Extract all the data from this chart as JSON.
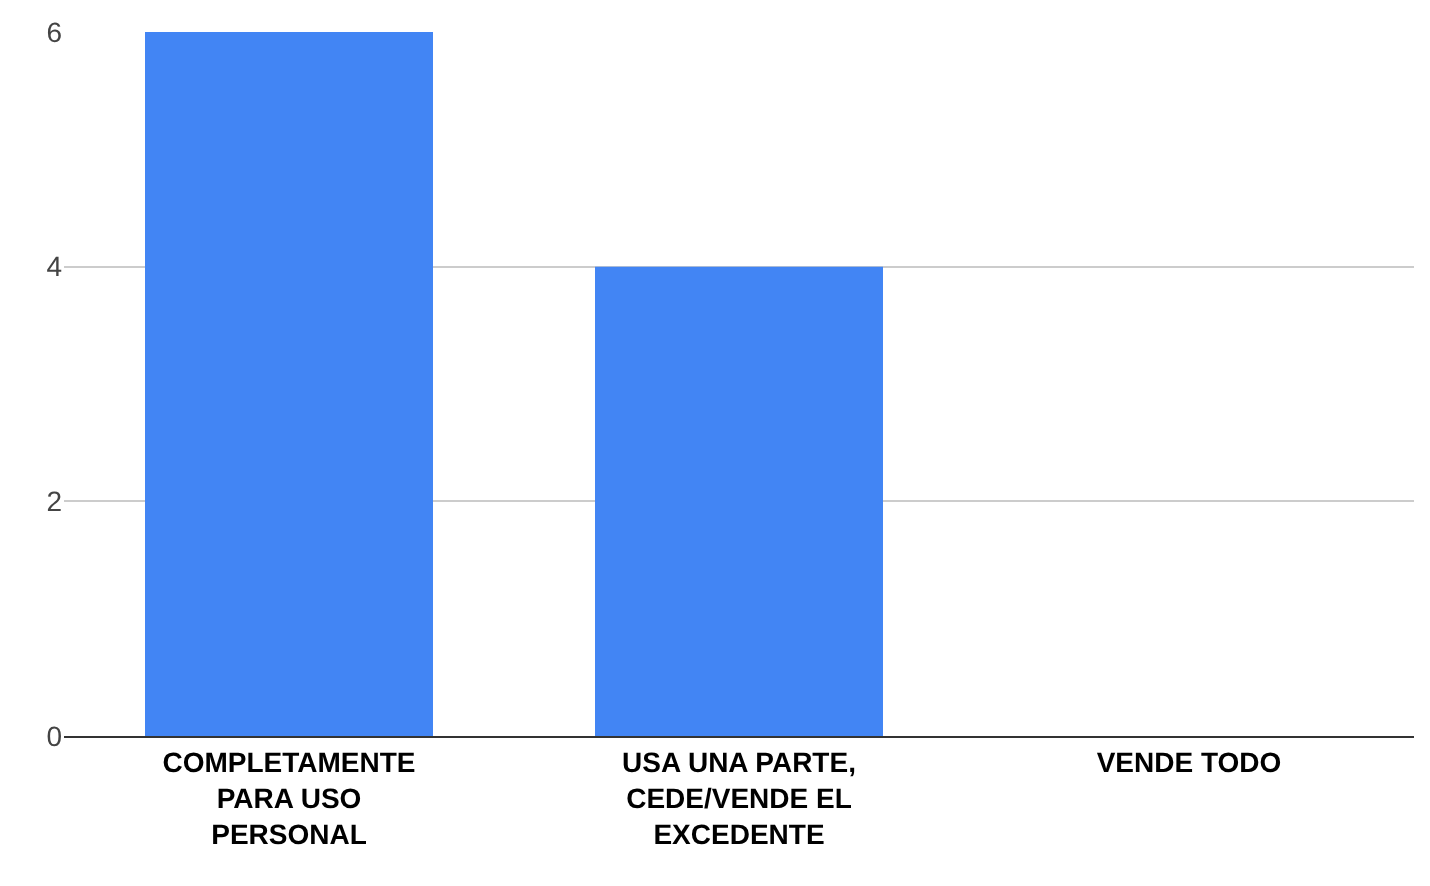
{
  "chart_data": {
    "type": "bar",
    "categories": [
      "COMPLETAMENTE PARA USO PERSONAL",
      "USA UNA PARTE, CEDE/VENDE EL EXCEDENTE",
      "VENDE TODO"
    ],
    "values": [
      6,
      4,
      0
    ],
    "color": "#4285f4",
    "ylim": [
      0,
      6
    ],
    "yticks": [
      0,
      2,
      4,
      6
    ],
    "grid": "y"
  }
}
